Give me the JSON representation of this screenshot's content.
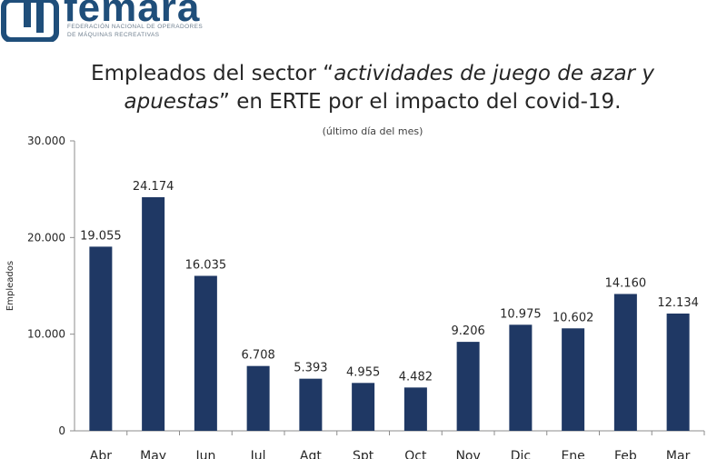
{
  "logo": {
    "wordmark": "femara",
    "sub1": "FEDERACIÓN NACIONAL DE OPERADORES",
    "sub2": "DE MÁQUINAS RECREATIVAS"
  },
  "colors": {
    "bar": "#1f3864",
    "brand": "#1f4e7a",
    "axis": "#8c8c8c",
    "text": "#262626"
  },
  "chart_data": {
    "type": "bar",
    "title_part1": "Empleados del sector “",
    "title_emph1": "actividades de juego de azar y",
    "title_emph2": "apuestas",
    "title_part2": "” en ERTE por el impacto del covid-19.",
    "subtitle": "(último día del mes)",
    "xlabel": "",
    "ylabel": "Empleados",
    "ylim": [
      0,
      30000
    ],
    "yticks": [
      0,
      10000,
      20000,
      30000
    ],
    "ytick_labels": [
      "0",
      "10.000",
      "20.000",
      "30.000"
    ],
    "categories": [
      "Abr",
      "May",
      "Jun",
      "Jul",
      "Agt",
      "Spt",
      "Oct",
      "Nov",
      "Dic",
      "Ene",
      "Feb",
      "Mar"
    ],
    "values": [
      19055,
      24174,
      16035,
      6708,
      5393,
      4955,
      4482,
      9206,
      10975,
      10602,
      14160,
      12134
    ],
    "value_labels": [
      "19.055",
      "24.174",
      "16.035",
      "6.708",
      "5.393",
      "4.955",
      "4.482",
      "9.206",
      "10.975",
      "10.602",
      "14.160",
      "12.134"
    ],
    "grid": false,
    "legend": "none"
  }
}
